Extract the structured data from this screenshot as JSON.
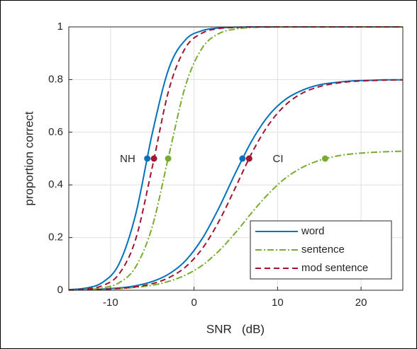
{
  "chart_data": {
    "type": "line",
    "xlabel": "SNR   (dB)",
    "ylabel": "proportion correct",
    "x": [
      -15,
      -13,
      -11,
      -9,
      -7,
      -5,
      -3,
      -1,
      1,
      3,
      5,
      7,
      9,
      11,
      13,
      15,
      17,
      19,
      21,
      23,
      25
    ],
    "xlim": [
      -15,
      25
    ],
    "xticks": [
      -10,
      0,
      10,
      20
    ],
    "ylim": [
      0,
      1
    ],
    "yticks": [
      0,
      0.2,
      0.4,
      0.6,
      0.8,
      1
    ],
    "grid": true,
    "legend": "lower right",
    "annotations": [
      "NH",
      "CI"
    ],
    "series": [
      {
        "name": "word",
        "color": "#0072bd",
        "dash": "solid",
        "curves": [
          [
            0.0022,
            0.008,
            0.029,
            0.099,
            0.287,
            0.596,
            0.844,
            0.952,
            0.986,
            0.996,
            0.999,
            1,
            1,
            1,
            1,
            1,
            1,
            1,
            1,
            1,
            1
          ],
          [
            0.0011,
            0.0022,
            0.0044,
            0.0086,
            0.017,
            0.033,
            0.062,
            0.113,
            0.197,
            0.314,
            0.448,
            0.572,
            0.666,
            0.726,
            0.76,
            0.78,
            0.789,
            0.795,
            0.797,
            0.799,
            0.799
          ]
        ],
        "marker_x": [
          -5.6,
          5.8
        ],
        "marker_y": [
          0.5,
          0.5
        ]
      },
      {
        "name": "sentence",
        "color": "#77ac30",
        "dash": "dashdot",
        "curves": [
          [
            0.0008,
            0.0026,
            0.0087,
            0.028,
            0.088,
            0.242,
            0.515,
            0.779,
            0.921,
            0.975,
            0.992,
            0.998,
            0.999,
            1,
            1,
            1,
            1,
            1,
            1,
            1,
            1
          ],
          [
            0.0011,
            0.0019,
            0.0034,
            0.0061,
            0.011,
            0.019,
            0.034,
            0.058,
            0.095,
            0.15,
            0.22,
            0.298,
            0.369,
            0.427,
            0.467,
            0.493,
            0.509,
            0.518,
            0.523,
            0.526,
            0.528
          ]
        ],
        "marker_x": [
          -3.1,
          15.7
        ],
        "marker_y": [
          0.5,
          0.5
        ]
      },
      {
        "name": "mod sentence",
        "color": "#a2142f",
        "dash": "dashed",
        "curves": [
          [
            0.0013,
            0.0048,
            0.017,
            0.061,
            0.193,
            0.468,
            0.763,
            0.922,
            0.977,
            0.994,
            0.998,
            1,
            1,
            1,
            1,
            1,
            1,
            1,
            1,
            1,
            1
          ],
          [
            0.0009,
            0.0017,
            0.0034,
            0.0066,
            0.013,
            0.025,
            0.048,
            0.089,
            0.159,
            0.263,
            0.393,
            0.526,
            0.632,
            0.705,
            0.749,
            0.773,
            0.786,
            0.793,
            0.796,
            0.798,
            0.799
          ]
        ],
        "marker_x": [
          -4.8,
          6.6
        ],
        "marker_y": [
          0.5,
          0.5
        ]
      }
    ]
  }
}
